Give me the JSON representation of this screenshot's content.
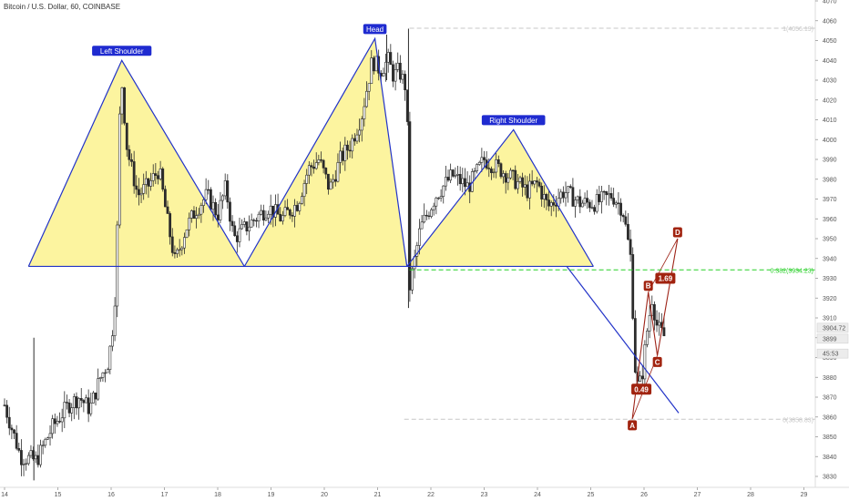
{
  "header": {
    "title": "Bitcoin / U.S. Dollar, 60, COINBASE"
  },
  "colors": {
    "up": "#2b2b2b",
    "down": "#2b2b2b",
    "pattern_fill": "#fbf28e",
    "pattern_line": "#2233c8",
    "label_bg": "#1f2bd0",
    "harmonic": "#9e2418",
    "harmonic_label_bg": "#a1230f",
    "fib_green": "#27cf27",
    "fib_gray": "#c7c7c7",
    "axis_text": "#555555",
    "price_tag_bg": "#ececec"
  },
  "chart_data": {
    "type": "candlestick",
    "symbol": "Bitcoin / U.S. Dollar, 60, COINBASE",
    "x_ticks": [
      "14",
      "15",
      "16",
      "17",
      "18",
      "19",
      "20",
      "21",
      "22",
      "23",
      "24",
      "25",
      "26",
      "27",
      "28",
      "29"
    ],
    "y_ticks": [
      3830,
      3840,
      3850,
      3860,
      3870,
      3880,
      3890,
      3900,
      3910,
      3920,
      3930,
      3940,
      3950,
      3960,
      3970,
      3980,
      3990,
      4000,
      4010,
      4020,
      4030,
      4040,
      4050,
      4060,
      4070
    ],
    "ylim": [
      3825,
      4073
    ],
    "xlim": [
      14.0,
      29.97
    ],
    "price_path": [
      [
        14.0,
        3866
      ],
      [
        14.3,
        3840
      ],
      [
        14.6,
        3838
      ],
      [
        14.9,
        3855
      ],
      [
        15.2,
        3866
      ],
      [
        15.4,
        3870
      ],
      [
        15.6,
        3864
      ],
      [
        15.8,
        3880
      ],
      [
        15.95,
        3888
      ],
      [
        16.05,
        3910
      ],
      [
        16.1,
        3936
      ],
      [
        16.18,
        4036
      ],
      [
        16.3,
        3995
      ],
      [
        16.5,
        3972
      ],
      [
        16.7,
        3977
      ],
      [
        16.9,
        3985
      ],
      [
        17.05,
        3960
      ],
      [
        17.2,
        3938
      ],
      [
        17.4,
        3955
      ],
      [
        17.6,
        3965
      ],
      [
        17.8,
        3972
      ],
      [
        18.0,
        3962
      ],
      [
        18.15,
        3976
      ],
      [
        18.3,
        3950
      ],
      [
        18.5,
        3955
      ],
      [
        18.7,
        3960
      ],
      [
        18.95,
        3966
      ],
      [
        19.2,
        3960
      ],
      [
        19.5,
        3968
      ],
      [
        19.7,
        3985
      ],
      [
        19.9,
        3990
      ],
      [
        20.1,
        3975
      ],
      [
        20.3,
        3990
      ],
      [
        20.5,
        3998
      ],
      [
        20.7,
        4012
      ],
      [
        20.9,
        4040
      ],
      [
        21.05,
        4035
      ],
      [
        21.2,
        4040
      ],
      [
        21.3,
        4032
      ],
      [
        21.4,
        4035
      ],
      [
        21.55,
        4025
      ],
      [
        21.6,
        3925
      ],
      [
        21.8,
        3955
      ],
      [
        22.1,
        3972
      ],
      [
        22.4,
        3982
      ],
      [
        22.7,
        3976
      ],
      [
        23.0,
        3990
      ],
      [
        23.3,
        3985
      ],
      [
        23.55,
        3980
      ],
      [
        23.8,
        3974
      ],
      [
        24.0,
        3978
      ],
      [
        24.2,
        3966
      ],
      [
        24.5,
        3974
      ],
      [
        24.8,
        3968
      ],
      [
        25.1,
        3968
      ],
      [
        25.4,
        3972
      ],
      [
        25.6,
        3965
      ],
      [
        25.75,
        3940
      ],
      [
        25.85,
        3875
      ],
      [
        25.95,
        3878
      ],
      [
        26.05,
        3902
      ],
      [
        26.15,
        3920
      ],
      [
        26.25,
        3905
      ],
      [
        26.4,
        3900
      ]
    ],
    "patterns": [
      {
        "label": "Left Shoulder",
        "points": [
          [
            14.45,
            3936
          ],
          [
            16.2,
            4040
          ],
          [
            18.5,
            3936
          ]
        ]
      },
      {
        "label": "Head",
        "points": [
          [
            18.5,
            3936
          ],
          [
            20.95,
            4051
          ],
          [
            21.55,
            3936
          ]
        ]
      },
      {
        "label": "Right Shoulder",
        "points": [
          [
            21.55,
            3936
          ],
          [
            23.55,
            4005
          ],
          [
            25.05,
            3936
          ]
        ]
      }
    ],
    "neckline": {
      "y": 3936,
      "x_start": 14.45,
      "x_end": 25.05
    },
    "trendline": [
      [
        24.55,
        3936
      ],
      [
        26.65,
        3862
      ]
    ],
    "harmonic": {
      "points": [
        {
          "label": "A",
          "x": 25.78,
          "y": 3859
        },
        {
          "label": "B",
          "x": 26.08,
          "y": 3923
        },
        {
          "label": "C",
          "x": 26.25,
          "y": 3891
        },
        {
          "label": "D",
          "x": 26.63,
          "y": 3950
        }
      ],
      "ratios": [
        {
          "label": "0.49",
          "x": 25.95,
          "y": 3874
        },
        {
          "label": "1.69",
          "x": 26.4,
          "y": 3930
        }
      ]
    },
    "levels": [
      {
        "price": 4056.19,
        "label": "1(4056.19)",
        "color": "#c7c7c7",
        "x_start": 21.6
      },
      {
        "price": 3934.23,
        "label": "0.382(3934.23)",
        "color": "#27cf27",
        "x_start": 21.6
      },
      {
        "price": 3858.83,
        "label": "0(3858.83)",
        "color": "#c7c7c7",
        "x_start": 21.5
      }
    ],
    "price_tags": [
      {
        "text": "3904.72",
        "y": 3905
      },
      {
        "text": "3899",
        "y": 3899.5
      },
      {
        "text": "45:53",
        "y": 3892
      }
    ],
    "spikes": [
      {
        "x": 14.55,
        "high": 3900,
        "low": 3828
      },
      {
        "x": 21.58,
        "high": 4056,
        "low": 3915
      },
      {
        "x": 21.17,
        "high": 4053,
        "low": 4030
      }
    ]
  }
}
